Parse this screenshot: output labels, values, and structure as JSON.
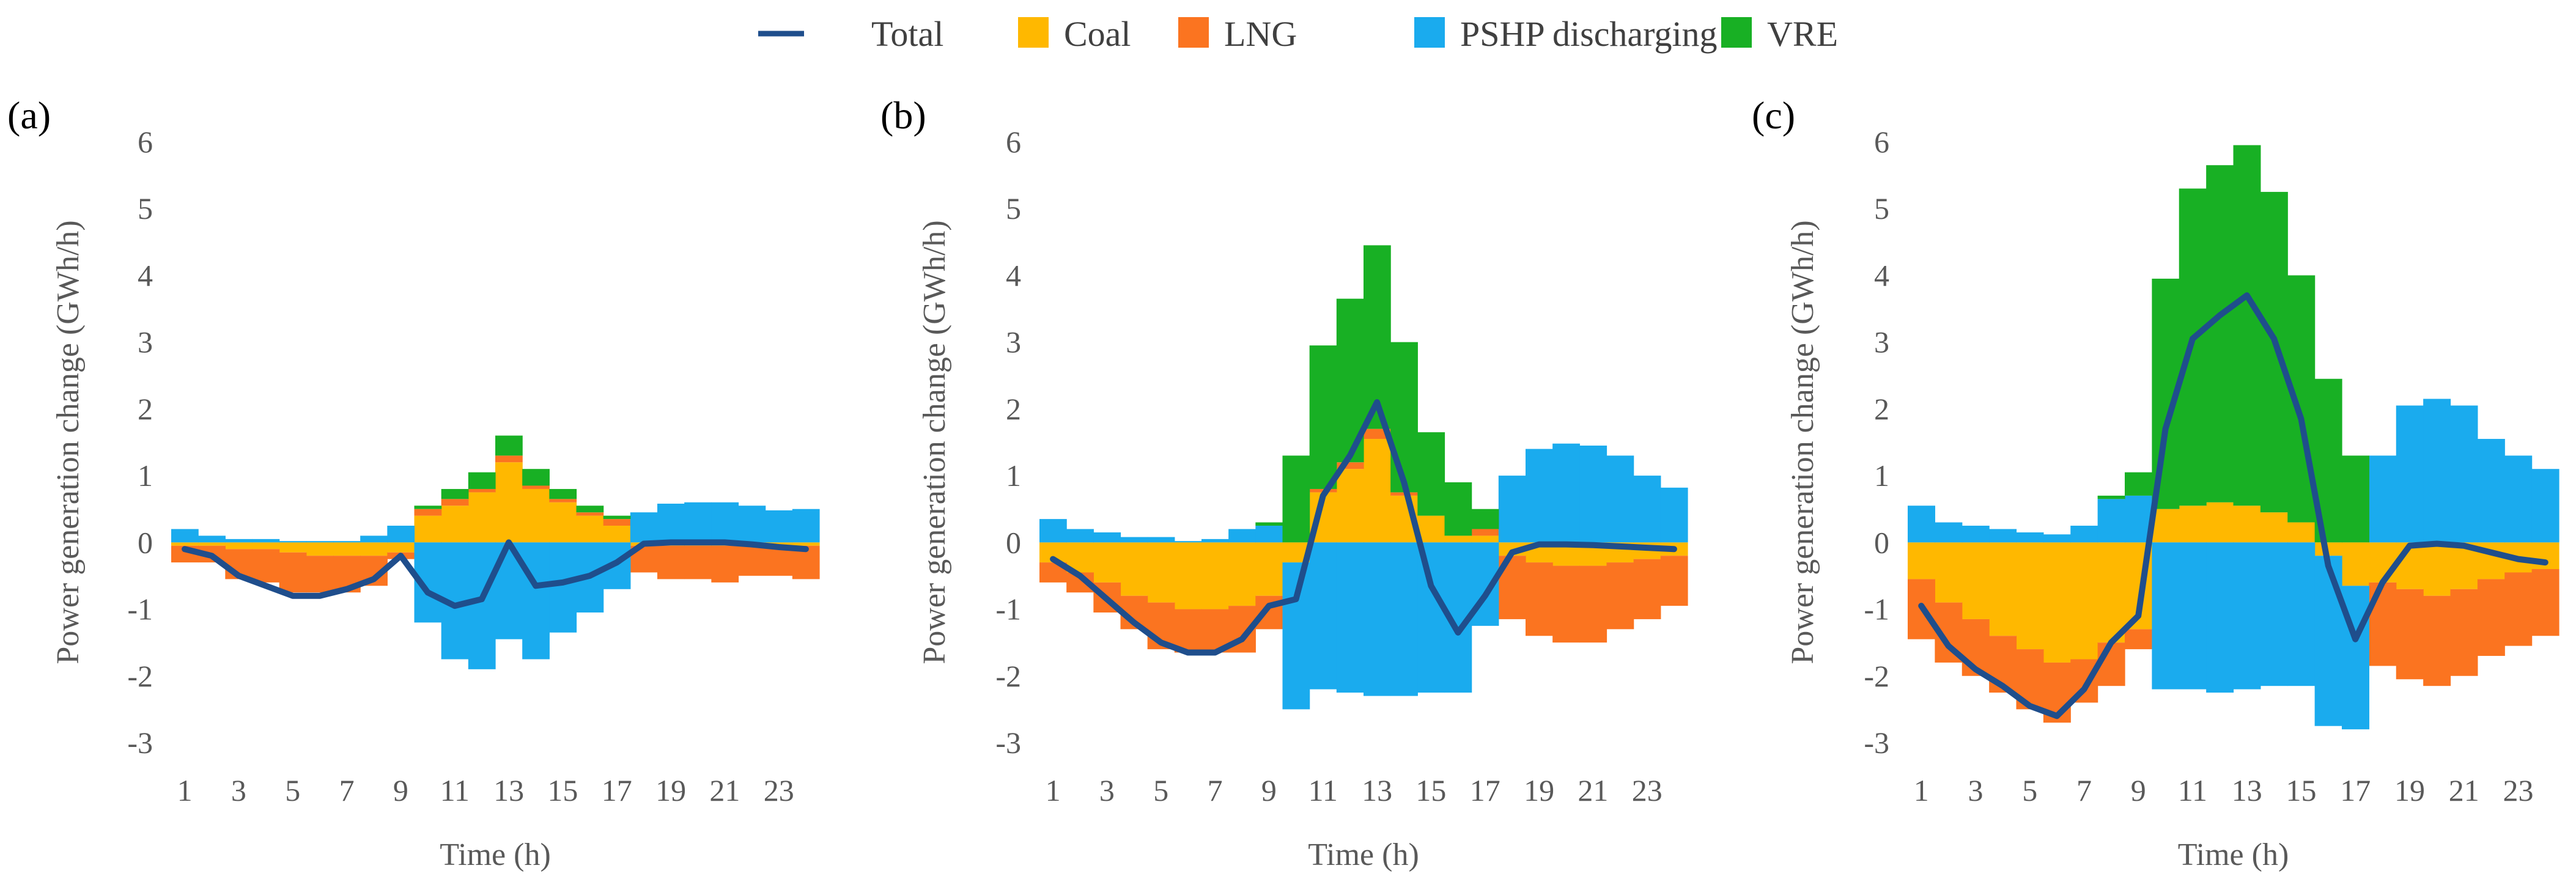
{
  "legend": [
    {
      "key": "total",
      "label": "Total",
      "color": "#1f4e8c",
      "kind": "line"
    },
    {
      "key": "coal",
      "label": "Coal",
      "color": "#ffb800",
      "kind": "box"
    },
    {
      "key": "lng",
      "label": "LNG",
      "color": "#fb7420",
      "kind": "box"
    },
    {
      "key": "pshp",
      "label": "PSHP discharging",
      "color": "#1aabee",
      "kind": "box"
    },
    {
      "key": "vre",
      "label": "VRE",
      "color": "#18b024",
      "kind": "box"
    }
  ],
  "chart_data": [
    {
      "type": "area",
      "panel_label": "(a)",
      "xlabel": "Time (h)",
      "ylabel": "Power generation change (GWh/h)",
      "ylim": [
        -3,
        6
      ],
      "yticks": [
        "-3",
        "-2",
        "-1",
        "0",
        "1",
        "2",
        "3",
        "4",
        "5",
        "6"
      ],
      "xticks": [
        "1",
        "3",
        "5",
        "7",
        "9",
        "11",
        "13",
        "15",
        "17",
        "19",
        "21",
        "23"
      ],
      "hours": [
        1,
        2,
        3,
        4,
        5,
        6,
        7,
        8,
        9,
        10,
        11,
        12,
        13,
        14,
        15,
        16,
        17,
        18,
        19,
        20,
        21,
        22,
        23,
        24
      ],
      "series": [
        {
          "name": "Coal",
          "values": [
            -0.05,
            -0.05,
            -0.1,
            -0.1,
            -0.15,
            -0.2,
            -0.2,
            -0.2,
            -0.15,
            0.4,
            0.55,
            0.75,
            1.2,
            0.8,
            0.6,
            0.4,
            0.25,
            -0.05,
            -0.05,
            -0.05,
            -0.05,
            -0.05,
            -0.05,
            -0.05
          ]
        },
        {
          "name": "LNG",
          "values": [
            -0.25,
            -0.25,
            -0.45,
            -0.5,
            -0.6,
            -0.55,
            -0.55,
            -0.45,
            -0.1,
            0.1,
            0.1,
            0.05,
            0.1,
            0.05,
            0.05,
            0.05,
            0.1,
            -0.4,
            -0.5,
            -0.5,
            -0.55,
            -0.45,
            -0.45,
            -0.5
          ]
        },
        {
          "name": "PSHP discharging",
          "values": [
            0.2,
            0.1,
            0.05,
            0.05,
            0.02,
            0.02,
            0.02,
            0.1,
            0.25,
            -1.2,
            -1.75,
            -1.9,
            -1.45,
            -1.75,
            -1.35,
            -1.05,
            -0.7,
            0.45,
            0.58,
            0.6,
            0.6,
            0.55,
            0.48,
            0.5
          ]
        },
        {
          "name": "VRE",
          "values": [
            0,
            0,
            0,
            0,
            0,
            0,
            0,
            0,
            0,
            0.05,
            0.15,
            0.25,
            0.3,
            0.25,
            0.15,
            0.1,
            0.05,
            0,
            0,
            0,
            0,
            0,
            0,
            0
          ]
        }
      ],
      "total": [
        -0.1,
        -0.2,
        -0.5,
        -0.65,
        -0.8,
        -0.8,
        -0.7,
        -0.55,
        -0.2,
        -0.75,
        -0.95,
        -0.85,
        0.0,
        -0.65,
        -0.6,
        -0.5,
        -0.3,
        -0.02,
        0.0,
        0.0,
        0.0,
        -0.03,
        -0.07,
        -0.1
      ]
    },
    {
      "type": "area",
      "panel_label": "(b)",
      "xlabel": "Time (h)",
      "ylabel": "Power generation change (GWh/h)",
      "ylim": [
        -3,
        6
      ],
      "yticks": [
        "-3",
        "-2",
        "-1",
        "0",
        "1",
        "2",
        "3",
        "4",
        "5",
        "6"
      ],
      "xticks": [
        "1",
        "3",
        "5",
        "7",
        "9",
        "11",
        "13",
        "15",
        "17",
        "19",
        "21",
        "23"
      ],
      "hours": [
        1,
        2,
        3,
        4,
        5,
        6,
        7,
        8,
        9,
        10,
        11,
        12,
        13,
        14,
        15,
        16,
        17,
        18,
        19,
        20,
        21,
        22,
        23,
        24
      ],
      "series": [
        {
          "name": "Coal",
          "values": [
            -0.3,
            -0.45,
            -0.6,
            -0.8,
            -0.9,
            -1.0,
            -1.0,
            -0.95,
            -0.8,
            -0.3,
            0.75,
            1.1,
            1.55,
            0.7,
            0.4,
            0.1,
            0.1,
            -0.2,
            -0.3,
            -0.35,
            -0.35,
            -0.3,
            -0.25,
            -0.2
          ]
        },
        {
          "name": "LNG",
          "values": [
            -0.3,
            -0.3,
            -0.45,
            -0.5,
            -0.7,
            -0.65,
            -0.65,
            -0.7,
            -0.5,
            0.0,
            0.05,
            0.1,
            0.15,
            0.05,
            0.0,
            0.0,
            0.1,
            -0.95,
            -1.1,
            -1.15,
            -1.15,
            -1.0,
            -0.9,
            -0.75
          ]
        },
        {
          "name": "PSHP discharging",
          "values": [
            0.35,
            0.2,
            0.15,
            0.08,
            0.08,
            0.02,
            0.05,
            0.2,
            0.25,
            -2.2,
            -2.2,
            -2.25,
            -2.3,
            -2.3,
            -2.25,
            -2.25,
            -1.25,
            1.0,
            1.4,
            1.48,
            1.45,
            1.3,
            1.0,
            0.82
          ]
        },
        {
          "name": "VRE",
          "values": [
            0,
            0,
            0,
            0,
            0,
            0,
            0,
            0,
            0.05,
            1.3,
            2.15,
            2.45,
            2.75,
            2.25,
            1.25,
            0.8,
            0.3,
            0,
            0,
            0,
            0,
            0,
            0,
            0
          ]
        }
      ],
      "total": [
        -0.25,
        -0.5,
        -0.85,
        -1.2,
        -1.5,
        -1.65,
        -1.65,
        -1.45,
        -0.95,
        -0.85,
        0.7,
        1.3,
        2.1,
        0.9,
        -0.65,
        -1.35,
        -0.8,
        -0.15,
        -0.03,
        -0.03,
        -0.04,
        -0.06,
        -0.08,
        -0.1
      ]
    },
    {
      "type": "area",
      "panel_label": "(c)",
      "xlabel": "Time (h)",
      "ylabel": "Power generation change (GWh/h)",
      "ylim": [
        -3,
        6
      ],
      "yticks": [
        "-3",
        "-2",
        "-1",
        "0",
        "1",
        "2",
        "3",
        "4",
        "5",
        "6"
      ],
      "xticks": [
        "1",
        "3",
        "5",
        "7",
        "9",
        "11",
        "13",
        "15",
        "17",
        "19",
        "21",
        "23"
      ],
      "hours": [
        1,
        2,
        3,
        4,
        5,
        6,
        7,
        8,
        9,
        10,
        11,
        12,
        13,
        14,
        15,
        16,
        17,
        18,
        19,
        20,
        21,
        22,
        23,
        24
      ],
      "series": [
        {
          "name": "Coal",
          "values": [
            -0.55,
            -0.9,
            -1.15,
            -1.4,
            -1.6,
            -1.8,
            -1.75,
            -1.5,
            -1.3,
            0.5,
            0.55,
            0.6,
            0.55,
            0.45,
            0.3,
            -0.2,
            -0.65,
            -0.6,
            -0.7,
            -0.8,
            -0.7,
            -0.55,
            -0.45,
            -0.4
          ]
        },
        {
          "name": "LNG",
          "values": [
            -0.9,
            -0.9,
            -0.85,
            -0.85,
            -0.9,
            -0.9,
            -0.65,
            -0.65,
            -0.3,
            0.0,
            0.0,
            0.0,
            0.0,
            0.0,
            0.0,
            0.0,
            0.0,
            -1.25,
            -1.35,
            -1.35,
            -1.3,
            -1.15,
            -1.1,
            -1.0
          ]
        },
        {
          "name": "PSHP discharging",
          "values": [
            0.55,
            0.3,
            0.25,
            0.2,
            0.15,
            0.12,
            0.25,
            0.65,
            0.7,
            -2.2,
            -2.2,
            -2.25,
            -2.2,
            -2.15,
            -2.15,
            -2.55,
            -2.15,
            1.3,
            2.05,
            2.15,
            2.05,
            1.55,
            1.3,
            1.1
          ]
        },
        {
          "name": "VRE",
          "values": [
            0,
            0,
            0,
            0,
            0,
            0,
            0,
            0.05,
            0.35,
            3.45,
            4.75,
            5.05,
            5.4,
            4.8,
            3.7,
            2.45,
            1.3,
            0,
            0,
            0,
            0,
            0,
            0,
            0
          ]
        }
      ],
      "total": [
        -0.95,
        -1.55,
        -1.9,
        -2.15,
        -2.45,
        -2.6,
        -2.2,
        -1.5,
        -1.1,
        1.7,
        3.05,
        3.4,
        3.7,
        3.05,
        1.85,
        -0.35,
        -1.45,
        -0.6,
        -0.05,
        -0.02,
        -0.05,
        -0.15,
        -0.25,
        -0.3
      ]
    }
  ]
}
